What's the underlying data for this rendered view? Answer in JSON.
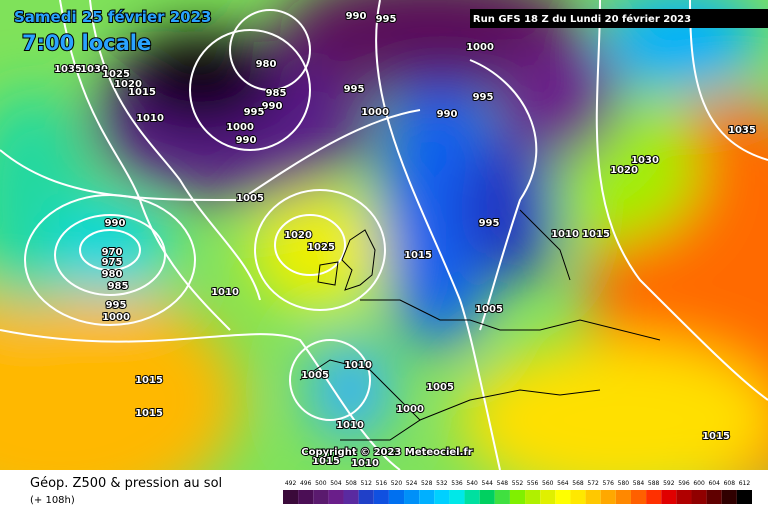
{
  "header": {
    "date": "Samedi 25 février 2023",
    "time": "7:00 locale",
    "run": "Run GFS 18 Z du Lundi 20 février 2023"
  },
  "map": {
    "copyright": "Copyright © 2023 Meteociel.fr",
    "isobar_labels": [
      1035,
      1030,
      1025,
      1020,
      1015,
      1010,
      985,
      980,
      990,
      995,
      1000,
      990,
      990,
      995,
      1000,
      995,
      1000,
      995,
      990,
      1005,
      990,
      970,
      975,
      980,
      985,
      995,
      1000,
      1010,
      1020,
      1025,
      1015,
      995,
      1005,
      1010,
      1015,
      1020,
      1030,
      1035,
      1005,
      1010,
      1005,
      1000,
      1010,
      1015,
      1015,
      1015,
      1010,
      1015
    ]
  },
  "footer": {
    "title": "Géop. Z500 & pression au sol",
    "lead": "(+ 108h)"
  },
  "legend": {
    "labels": [
      492,
      496,
      500,
      504,
      508,
      512,
      516,
      520,
      524,
      528,
      532,
      536,
      540,
      544,
      548,
      552,
      556,
      560,
      564,
      568,
      572,
      576,
      580,
      584,
      588,
      592,
      596,
      600,
      604,
      608,
      612
    ],
    "colors": [
      "#3a0a3a",
      "#4b0e55",
      "#5a1a6e",
      "#6a1e8a",
      "#5a2aa0",
      "#2040c8",
      "#1050e0",
      "#0070f0",
      "#0090f8",
      "#00b0ff",
      "#00d0ff",
      "#00e8e8",
      "#00e0a0",
      "#00d060",
      "#40e040",
      "#80f000",
      "#b0f000",
      "#e0f000",
      "#ffff00",
      "#ffe800",
      "#ffc800",
      "#ffa800",
      "#ff8800",
      "#ff6000",
      "#ff3000",
      "#e00000",
      "#b00000",
      "#900000",
      "#600000",
      "#300000",
      "#000000"
    ]
  }
}
